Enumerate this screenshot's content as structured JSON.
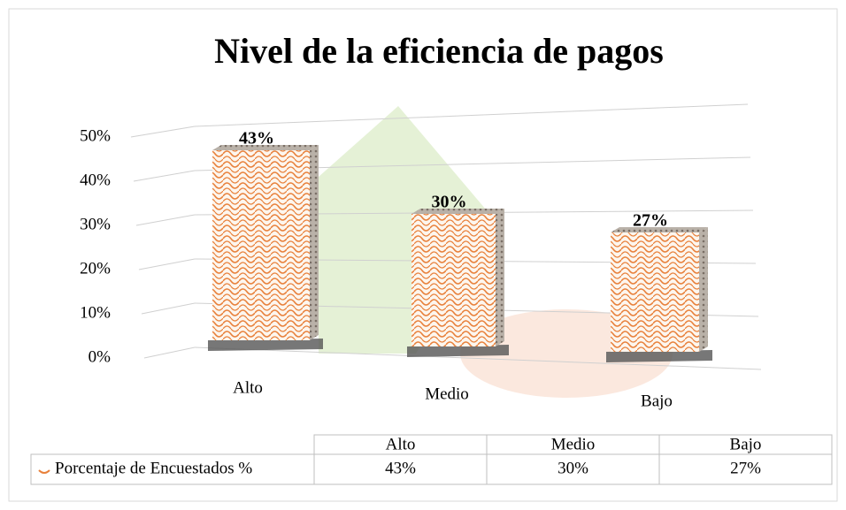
{
  "chart_data": {
    "type": "bar3d",
    "title": "Nivel de la eficiencia de pagos",
    "categories": [
      "Alto",
      "Medio",
      "Bajo"
    ],
    "series": [
      {
        "name": "Porcentaje de Encuestados %",
        "color": "#e8803a",
        "values": [
          43,
          30,
          27
        ],
        "value_labels": [
          "43%",
          "30%",
          "27%"
        ]
      }
    ],
    "ylim": [
      0,
      50
    ],
    "yticks": [
      {
        "value": 0,
        "label": "0%"
      },
      {
        "value": 10,
        "label": "10%"
      },
      {
        "value": 20,
        "label": "20%"
      },
      {
        "value": 30,
        "label": "30%"
      },
      {
        "value": 40,
        "label": "40%"
      },
      {
        "value": 50,
        "label": "50%"
      }
    ],
    "grid": true,
    "data_table": true
  }
}
